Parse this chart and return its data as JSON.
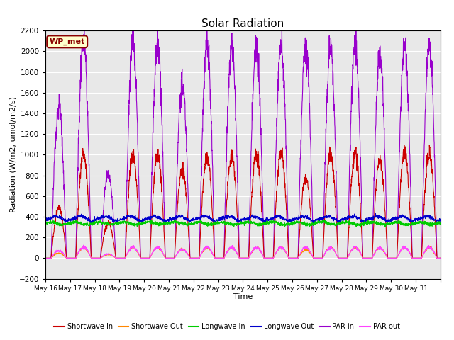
{
  "title": "Solar Radiation",
  "xlabel": "Time",
  "ylabel": "Radiation (W/m2, umol/m2/s)",
  "ylim": [
    -200,
    2200
  ],
  "yticks": [
    -200,
    0,
    200,
    400,
    600,
    800,
    1000,
    1200,
    1400,
    1600,
    1800,
    2000,
    2200
  ],
  "days": 16,
  "label_box": "WP_met",
  "plot_bg_color": "#e8e8e8",
  "fig_bg_color": "#ffffff",
  "series": {
    "shortwave_in": {
      "color": "#cc0000",
      "label": "Shortwave In"
    },
    "shortwave_out": {
      "color": "#ff8800",
      "label": "Shortwave Out"
    },
    "longwave_in": {
      "color": "#00cc00",
      "label": "Longwave In"
    },
    "longwave_out": {
      "color": "#0000cc",
      "label": "Longwave Out"
    },
    "par_in": {
      "color": "#9900cc",
      "label": "PAR in"
    },
    "par_out": {
      "color": "#ff44ff",
      "label": "PAR out"
    }
  },
  "x_tick_labels": [
    "May 16",
    "May 17",
    "May 18",
    "May 19",
    "May 20",
    "May 21",
    "May 22",
    "May 23",
    "May 24",
    "May 25",
    "May 26",
    "May 27",
    "May 28",
    "May 29",
    "May 30",
    "May 31"
  ],
  "par_in_peaks": [
    1450,
    2100,
    820,
    2100,
    2070,
    1680,
    2050,
    2040,
    2050,
    2050,
    2060,
    2040,
    2050,
    1950,
    2050,
    2060
  ],
  "sw_in_peaks": [
    480,
    1010,
    340,
    1010,
    1000,
    860,
    980,
    980,
    1010,
    1010,
    780,
    1010,
    1010,
    950,
    1010,
    1010
  ],
  "lw_base": 340,
  "lw_out_base": 370
}
